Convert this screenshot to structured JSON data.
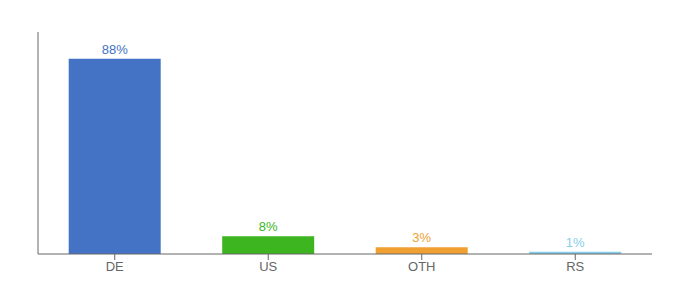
{
  "chart_data": {
    "type": "bar",
    "categories": [
      "DE",
      "US",
      "OTH",
      "RS"
    ],
    "values": [
      88,
      8,
      3,
      1
    ],
    "value_labels": [
      "88%",
      "8%",
      "3%",
      "1%"
    ],
    "data_labels": true,
    "colors": [
      "#4472c4",
      "#3cb520",
      "#f0a030",
      "#87ceeb"
    ],
    "ylim": [
      0,
      100
    ],
    "tick_labels": "x",
    "grid": false
  }
}
